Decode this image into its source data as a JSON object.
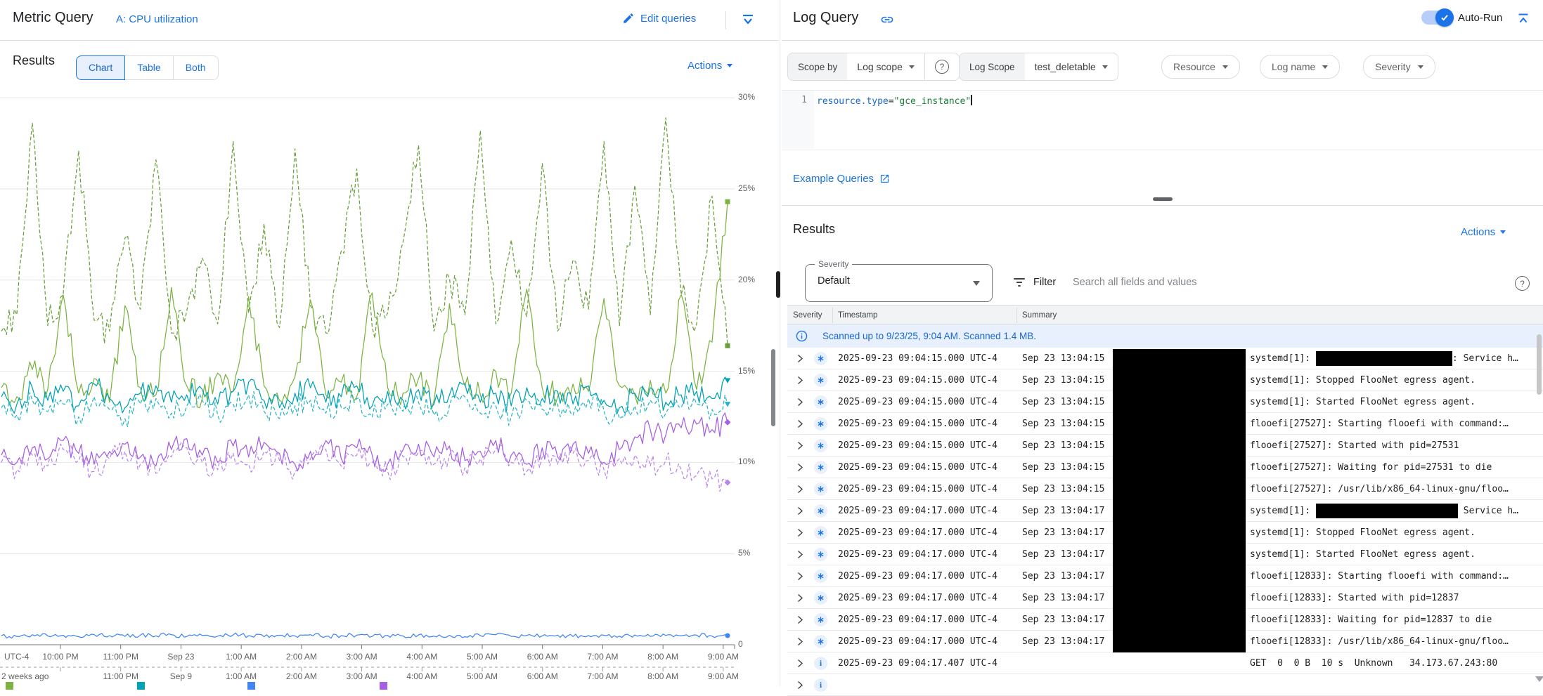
{
  "metric_panel": {
    "title": "Metric Query",
    "query_label": "A: CPU utilization",
    "edit_queries_label": "Edit queries",
    "results_label": "Results",
    "view_tabs": {
      "chart": "Chart",
      "table": "Table",
      "both": "Both"
    },
    "actions_label": "Actions",
    "chart_data": {
      "type": "line",
      "title": "CPU utilization",
      "unit": "%",
      "ylim": [
        0,
        30
      ],
      "y_tick_step": 5,
      "y_tick_labels": [
        "30%",
        "25%",
        "20%",
        "15%",
        "10%",
        "5%",
        "0"
      ],
      "grid": true,
      "x_axis_rows": {
        "row1": [
          "UTC-4",
          "10:00 PM",
          "11:00 PM",
          "Sep 23",
          "1:00 AM",
          "2:00 AM",
          "3:00 AM",
          "4:00 AM",
          "5:00 AM",
          "6:00 AM",
          "7:00 AM",
          "8:00 AM",
          "9:00 AM"
        ],
        "row2": [
          "2 weeks ago",
          "11:00 PM",
          "Sep 9",
          "1:00 AM",
          "2:00 AM",
          "3:00 AM",
          "4:00 AM",
          "5:00 AM",
          "6:00 AM",
          "7:00 AM",
          "8:00 AM",
          "9:00 AM"
        ]
      },
      "series": [
        {
          "name": "series-1-green-dashed",
          "color": "#689f38",
          "dashed": true,
          "marker": "square",
          "noise": 0.9,
          "values": [
            17.2,
            18.1,
            28.6,
            17.5,
            19.2,
            27.1,
            17.8,
            17.2,
            22.3,
            18.4,
            26.6,
            17.1,
            18.3,
            21.2,
            17.6,
            27.6,
            18.2,
            23.1,
            17.4,
            27.2,
            18.6,
            17.1,
            21.6,
            26.1,
            17.4,
            18.2,
            22.1,
            27.4,
            17.2,
            20.1,
            18.1,
            28.2,
            17.6,
            22.2,
            18.0,
            26.4,
            17.2,
            21.1,
            18.4,
            27.6,
            17.5,
            25.2,
            18.1,
            28.9,
            19.2,
            17.6,
            24.6,
            16.4
          ]
        },
        {
          "name": "series-2-green-solid",
          "color": "#7cb342",
          "dashed": false,
          "marker": "square",
          "noise": 0.7,
          "values": [
            14.1,
            13.6,
            15.1,
            14.0,
            19.2,
            13.8,
            14.6,
            13.3,
            18.6,
            14.1,
            13.7,
            19.6,
            14.2,
            13.5,
            14.9,
            13.9,
            19.1,
            14.2,
            13.4,
            14.7,
            18.9,
            13.7,
            14.4,
            13.6,
            19.3,
            14.1,
            13.8,
            14.6,
            13.4,
            18.7,
            14.2,
            13.7,
            15.0,
            13.8,
            19.5,
            14.1,
            13.6,
            14.3,
            13.9,
            19.0,
            14.2,
            13.7,
            14.5,
            13.8,
            19.2,
            14.0,
            16.6,
            24.3
          ]
        },
        {
          "name": "series-3-teal-solid",
          "color": "#00a2b3",
          "dashed": false,
          "marker": "triangle",
          "noise": 0.6,
          "values": [
            13.6,
            13.2,
            14.1,
            13.4,
            13.9,
            13.1,
            14.3,
            13.5,
            13.0,
            13.8,
            14.2,
            13.3,
            13.7,
            14.0,
            13.2,
            13.9,
            14.4,
            13.4,
            13.0,
            13.8,
            14.1,
            13.3,
            13.6,
            14.2,
            13.1,
            13.9,
            13.4,
            14.0,
            13.2,
            13.7,
            14.3,
            13.3,
            13.8,
            13.1,
            14.1,
            13.5,
            13.9,
            13.2,
            14.2,
            13.4,
            13.0,
            13.8,
            14.1,
            13.3,
            13.7,
            13.9,
            13.5,
            14.5
          ]
        },
        {
          "name": "series-4-teal-dashed",
          "color": "#26b5c4",
          "dashed": true,
          "marker": "triangle",
          "noise": 0.6,
          "values": [
            13.0,
            12.6,
            13.4,
            12.8,
            13.2,
            12.5,
            13.6,
            12.9,
            12.4,
            13.2,
            13.5,
            12.7,
            13.1,
            13.4,
            12.6,
            13.2,
            13.7,
            12.8,
            12.4,
            13.1,
            13.4,
            12.7,
            13.0,
            13.5,
            12.5,
            13.2,
            12.8,
            13.3,
            12.6,
            13.1,
            13.6,
            12.7,
            13.1,
            12.5,
            13.4,
            12.9,
            13.2,
            12.6,
            13.5,
            12.8,
            12.4,
            13.1,
            13.4,
            12.7,
            13.0,
            13.2,
            12.9,
            13.2
          ]
        },
        {
          "name": "series-5-purple-solid",
          "color": "#a55fe0",
          "dashed": false,
          "marker": "diamond",
          "noise": 0.6,
          "values": [
            10.4,
            10.0,
            10.8,
            10.2,
            11.2,
            10.5,
            9.9,
            10.6,
            11.0,
            10.3,
            9.8,
            10.7,
            11.3,
            10.4,
            10.0,
            10.9,
            10.3,
            11.1,
            10.5,
            9.9,
            10.6,
            11.2,
            10.2,
            10.8,
            10.4,
            9.9,
            10.7,
            11.0,
            10.3,
            10.9,
            10.1,
            10.6,
            11.2,
            10.4,
            9.9,
            10.8,
            10.3,
            11.0,
            10.5,
            10.0,
            10.7,
            11.4,
            11.8,
            11.5,
            11.9,
            12.1,
            11.8,
            12.2
          ]
        },
        {
          "name": "series-6-purple-dashed",
          "color": "#b985ec",
          "dashed": true,
          "marker": "diamond",
          "noise": 0.6,
          "values": [
            10.0,
            9.6,
            10.4,
            9.8,
            10.7,
            10.1,
            9.5,
            10.2,
            10.6,
            9.9,
            9.4,
            10.3,
            10.8,
            10.0,
            9.6,
            10.5,
            9.9,
            10.6,
            10.1,
            9.5,
            10.2,
            10.7,
            9.8,
            10.4,
            10.0,
            9.5,
            10.3,
            10.6,
            9.9,
            10.4,
            9.7,
            10.2,
            10.7,
            10.0,
            9.5,
            10.3,
            9.9,
            10.5,
            10.1,
            9.6,
            10.2,
            10.4,
            9.8,
            10.1,
            9.6,
            9.3,
            9.1,
            8.9
          ]
        },
        {
          "name": "series-7-blue-solid",
          "color": "#4285f4",
          "dashed": false,
          "marker": "circle",
          "noise": 0.12,
          "values": [
            0.5,
            0.45,
            0.55,
            0.48,
            0.52,
            0.44,
            0.56,
            0.5,
            0.46,
            0.53,
            0.49,
            0.55,
            0.45,
            0.51,
            0.47,
            0.54,
            0.5,
            0.44,
            0.52,
            0.48,
            0.55,
            0.46,
            0.5,
            0.53,
            0.45,
            0.51,
            0.48,
            0.54,
            0.47,
            0.52,
            0.44,
            0.5,
            0.55,
            0.46,
            0.51,
            0.48,
            0.53,
            0.45,
            0.5,
            0.52,
            0.47,
            0.54,
            0.46,
            0.51,
            0.49,
            0.53,
            0.47,
            0.5
          ]
        }
      ],
      "legend_swatches": [
        "#7cb342",
        "#00a2b3",
        "#4285f4",
        "#a55fe0"
      ],
      "legend_position": "bottom"
    }
  },
  "log_panel": {
    "title": "Log Query",
    "auto_run_label": "Auto-Run",
    "toolbar": {
      "scope_by_label": "Scope by",
      "scope_dropdown_value": "Log scope",
      "log_scope_label": "Log Scope",
      "log_scope_value": "test_deletable",
      "resource_label": "Resource",
      "log_name_label": "Log name",
      "severity_label": "Severity"
    },
    "editor": {
      "line_number": "1",
      "code_field": "resource.type",
      "code_operator": "=",
      "code_value": "\"gce_instance\""
    },
    "example_queries_label": "Example Queries",
    "results_label": "Results",
    "actions_label": "Actions",
    "filter": {
      "severity_label": "Severity",
      "severity_value": "Default",
      "filter_label": "Filter",
      "search_placeholder": "Search all fields and values"
    },
    "table": {
      "columns": [
        "Severity",
        "Timestamp",
        "Summary"
      ],
      "banner_text": "Scanned up to 9/23/25, 9:04 AM. Scanned 1.4 MB.",
      "summary_redaction_block": true,
      "rows": [
        {
          "icon": "default",
          "timestamp": "2025-09-23 09:04:15.000 UTC-4",
          "summary_time": "Sep 23 13:04:15",
          "message_pre": "systemd[1]: ",
          "redact_width": 194,
          "message_post": ": Service h…"
        },
        {
          "icon": "default",
          "timestamp": "2025-09-23 09:04:15.000 UTC-4",
          "summary_time": "Sep 23 13:04:15",
          "message_pre": "systemd[1]: Stopped FlooNet egress agent.",
          "redact_width": 0,
          "message_post": ""
        },
        {
          "icon": "default",
          "timestamp": "2025-09-23 09:04:15.000 UTC-4",
          "summary_time": "Sep 23 13:04:15",
          "message_pre": "systemd[1]: Started FlooNet egress agent.",
          "redact_width": 0,
          "message_post": ""
        },
        {
          "icon": "default",
          "timestamp": "2025-09-23 09:04:15.000 UTC-4",
          "summary_time": "Sep 23 13:04:15",
          "message_pre": "flooefi[27527]: Starting flooefi with command:…",
          "redact_width": 0,
          "message_post": ""
        },
        {
          "icon": "default",
          "timestamp": "2025-09-23 09:04:15.000 UTC-4",
          "summary_time": "Sep 23 13:04:15",
          "message_pre": "flooefi[27527]: Started with pid=27531",
          "redact_width": 0,
          "message_post": ""
        },
        {
          "icon": "default",
          "timestamp": "2025-09-23 09:04:15.000 UTC-4",
          "summary_time": "Sep 23 13:04:15",
          "message_pre": "flooefi[27527]: Waiting for pid=27531 to die",
          "redact_width": 0,
          "message_post": ""
        },
        {
          "icon": "default",
          "timestamp": "2025-09-23 09:04:15.000 UTC-4",
          "summary_time": "Sep 23 13:04:15",
          "message_pre": "flooefi[27527]: /usr/lib/x86_64-linux-gnu/floo…",
          "redact_width": 0,
          "message_post": ""
        },
        {
          "icon": "default",
          "timestamp": "2025-09-23 09:04:17.000 UTC-4",
          "summary_time": "Sep 23 13:04:17",
          "message_pre": "systemd[1]: ",
          "redact_width": 202,
          "message_post": " Service h…"
        },
        {
          "icon": "default",
          "timestamp": "2025-09-23 09:04:17.000 UTC-4",
          "summary_time": "Sep 23 13:04:17",
          "message_pre": "systemd[1]: Stopped FlooNet egress agent.",
          "redact_width": 0,
          "message_post": ""
        },
        {
          "icon": "default",
          "timestamp": "2025-09-23 09:04:17.000 UTC-4",
          "summary_time": "Sep 23 13:04:17",
          "message_pre": "systemd[1]: Started FlooNet egress agent.",
          "redact_width": 0,
          "message_post": ""
        },
        {
          "icon": "default",
          "timestamp": "2025-09-23 09:04:17.000 UTC-4",
          "summary_time": "Sep 23 13:04:17",
          "message_pre": "flooefi[12833]: Starting flooefi with command:…",
          "redact_width": 0,
          "message_post": ""
        },
        {
          "icon": "default",
          "timestamp": "2025-09-23 09:04:17.000 UTC-4",
          "summary_time": "Sep 23 13:04:17",
          "message_pre": "flooefi[12833]: Started with pid=12837",
          "redact_width": 0,
          "message_post": ""
        },
        {
          "icon": "default",
          "timestamp": "2025-09-23 09:04:17.000 UTC-4",
          "summary_time": "Sep 23 13:04:17",
          "message_pre": "flooefi[12833]: Waiting for pid=12837 to die",
          "redact_width": 0,
          "message_post": ""
        },
        {
          "icon": "default",
          "timestamp": "2025-09-23 09:04:17.000 UTC-4",
          "summary_time": "Sep 23 13:04:17",
          "message_pre": "flooefi[12833]: /usr/lib/x86_64-linux-gnu/floo…",
          "redact_width": 0,
          "message_post": ""
        },
        {
          "icon": "info",
          "timestamp": "2025-09-23 09:04:17.407 UTC-4",
          "summary_time": "",
          "message_pre": "GET  0  0 B  10 s  Unknown   34.173.67.243:80",
          "redact_width": 0,
          "message_post": ""
        },
        {
          "icon": "info",
          "timestamp": "",
          "summary_time": "",
          "message_pre": "",
          "redact_width": 0,
          "message_post": ""
        }
      ]
    }
  }
}
